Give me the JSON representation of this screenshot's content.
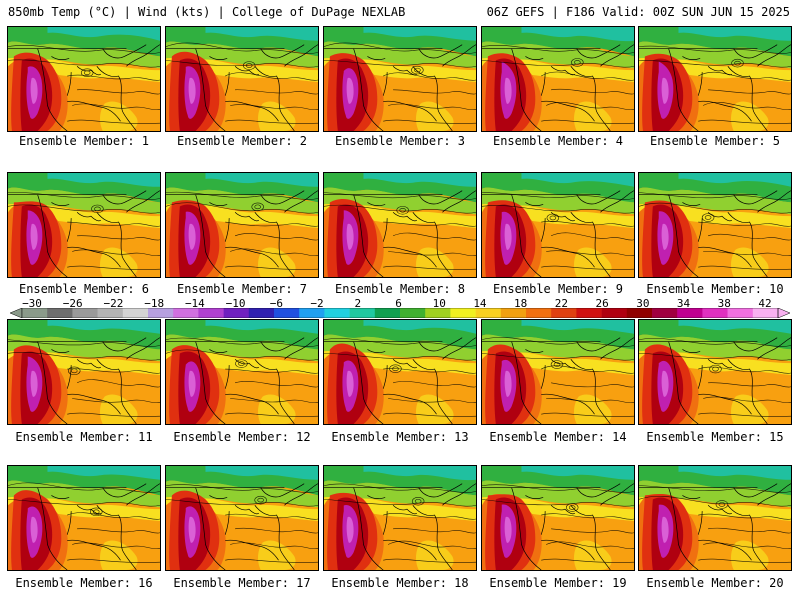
{
  "header": {
    "left": "850mb Temp (°C) | Wind (kts) | College of DuPage NEXLAB",
    "right": "06Z GEFS | F186 Valid: 00Z SUN JUN 15 2025"
  },
  "members": [
    {
      "label": "Ensemble Member: 1"
    },
    {
      "label": "Ensemble Member: 2"
    },
    {
      "label": "Ensemble Member: 3"
    },
    {
      "label": "Ensemble Member: 4"
    },
    {
      "label": "Ensemble Member: 5"
    },
    {
      "label": "Ensemble Member: 6"
    },
    {
      "label": "Ensemble Member: 7"
    },
    {
      "label": "Ensemble Member: 8"
    },
    {
      "label": "Ensemble Member: 9"
    },
    {
      "label": "Ensemble Member: 10"
    },
    {
      "label": "Ensemble Member: 11"
    },
    {
      "label": "Ensemble Member: 12"
    },
    {
      "label": "Ensemble Member: 13"
    },
    {
      "label": "Ensemble Member: 14"
    },
    {
      "label": "Ensemble Member: 15"
    },
    {
      "label": "Ensemble Member: 16"
    },
    {
      "label": "Ensemble Member: 17"
    },
    {
      "label": "Ensemble Member: 18"
    },
    {
      "label": "Ensemble Member: 19"
    },
    {
      "label": "Ensemble Member: 20"
    }
  ],
  "colorbar": {
    "ticks": [
      "−30",
      "−26",
      "−22",
      "−18",
      "−14",
      "−10",
      "−6",
      "−2",
      "2",
      "6",
      "10",
      "14",
      "18",
      "22",
      "26",
      "30",
      "34",
      "38",
      "42"
    ],
    "colors": [
      "#8a9a8a",
      "#6e6e6e",
      "#9a9a9a",
      "#b4b4b4",
      "#d4d4d4",
      "#b7a0e0",
      "#d070e0",
      "#b040d0",
      "#7020c0",
      "#3020b0",
      "#2050e0",
      "#20a0f0",
      "#20d0e0",
      "#20c8a0",
      "#10a050",
      "#40b030",
      "#a0d020",
      "#f0f020",
      "#f8d020",
      "#f0a010",
      "#f07010",
      "#e04010",
      "#d01010",
      "#b00010",
      "#900000",
      "#a00040",
      "#c00090",
      "#e030c0",
      "#f070e0",
      "#f8b0f0"
    ]
  },
  "palette": {
    "teal": "#20c0a0",
    "green": "#30b040",
    "lightgreen": "#90d030",
    "yellow": "#f8e020",
    "orange": "#f8a010",
    "darkorange": "#f07010",
    "red": "#e03010",
    "darkred": "#b00010",
    "magenta": "#c020b0",
    "pink": "#e070e0"
  }
}
